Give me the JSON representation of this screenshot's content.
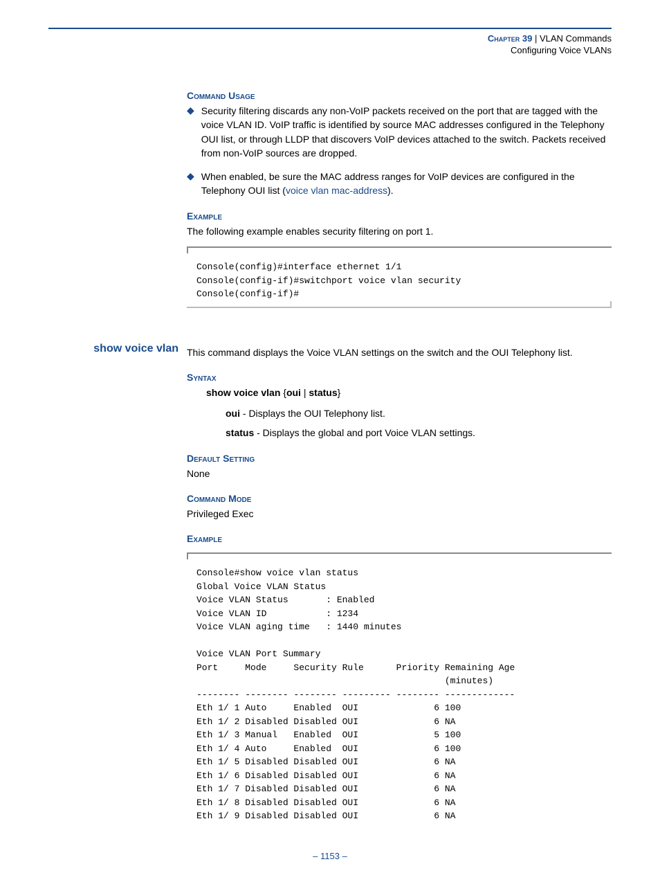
{
  "header": {
    "chapter_label": "Chapter 39",
    "divider": "|",
    "chapter_title": "VLAN Commands",
    "subtitle": "Configuring Voice VLANs"
  },
  "section1": {
    "heading": "Command Usage",
    "bullets": [
      {
        "pre": "Security filtering discards any non-VoIP packets received on the port that are tagged with the voice VLAN ID. VoIP traffic is identified by source MAC addresses configured in the Telephony OUI list, or through LLDP that discovers VoIP devices attached to the switch. Packets received from non-VoIP sources are dropped."
      },
      {
        "pre": "When enabled, be sure the MAC address ranges for VoIP devices are configured in the Telephony OUI list (",
        "link": "voice vlan mac-address",
        "post": ")."
      }
    ]
  },
  "example1": {
    "heading": "Example",
    "intro": "The following example enables security filtering on port 1.",
    "code": "Console(config)#interface ethernet 1/1\nConsole(config-if)#switchport voice vlan security\nConsole(config-if)#"
  },
  "command": {
    "name": "show voice vlan",
    "desc": "This command displays the Voice VLAN settings on the switch and the OUI Telephony list.",
    "syntax": {
      "heading": "Syntax",
      "line_cmd": "show voice vlan",
      "line_brace_open": "{",
      "line_opt1": "oui",
      "line_pipe": "|",
      "line_opt2": "status",
      "line_brace_close": "}",
      "opt1_name": "oui",
      "opt1_desc": " - Displays the OUI Telephony list.",
      "opt2_name": "status",
      "opt2_desc": " - Displays the global and port Voice VLAN settings."
    },
    "default": {
      "heading": "Default Setting",
      "value": "None"
    },
    "mode": {
      "heading": "Command Mode",
      "value": "Privileged Exec"
    },
    "example": {
      "heading": "Example",
      "code": "Console#show voice vlan status\nGlobal Voice VLAN Status\nVoice VLAN Status       : Enabled\nVoice VLAN ID           : 1234\nVoice VLAN aging time   : 1440 minutes\n\nVoice VLAN Port Summary\nPort     Mode     Security Rule      Priority Remaining Age\n                                              (minutes)\n-------- -------- -------- --------- -------- -------------\nEth 1/ 1 Auto     Enabled  OUI              6 100\nEth 1/ 2 Disabled Disabled OUI              6 NA\nEth 1/ 3 Manual   Enabled  OUI              5 100\nEth 1/ 4 Auto     Enabled  OUI              6 100\nEth 1/ 5 Disabled Disabled OUI              6 NA\nEth 1/ 6 Disabled Disabled OUI              6 NA\nEth 1/ 7 Disabled Disabled OUI              6 NA\nEth 1/ 8 Disabled Disabled OUI              6 NA\nEth 1/ 9 Disabled Disabled OUI              6 NA"
    }
  },
  "page_number": "– 1153 –"
}
